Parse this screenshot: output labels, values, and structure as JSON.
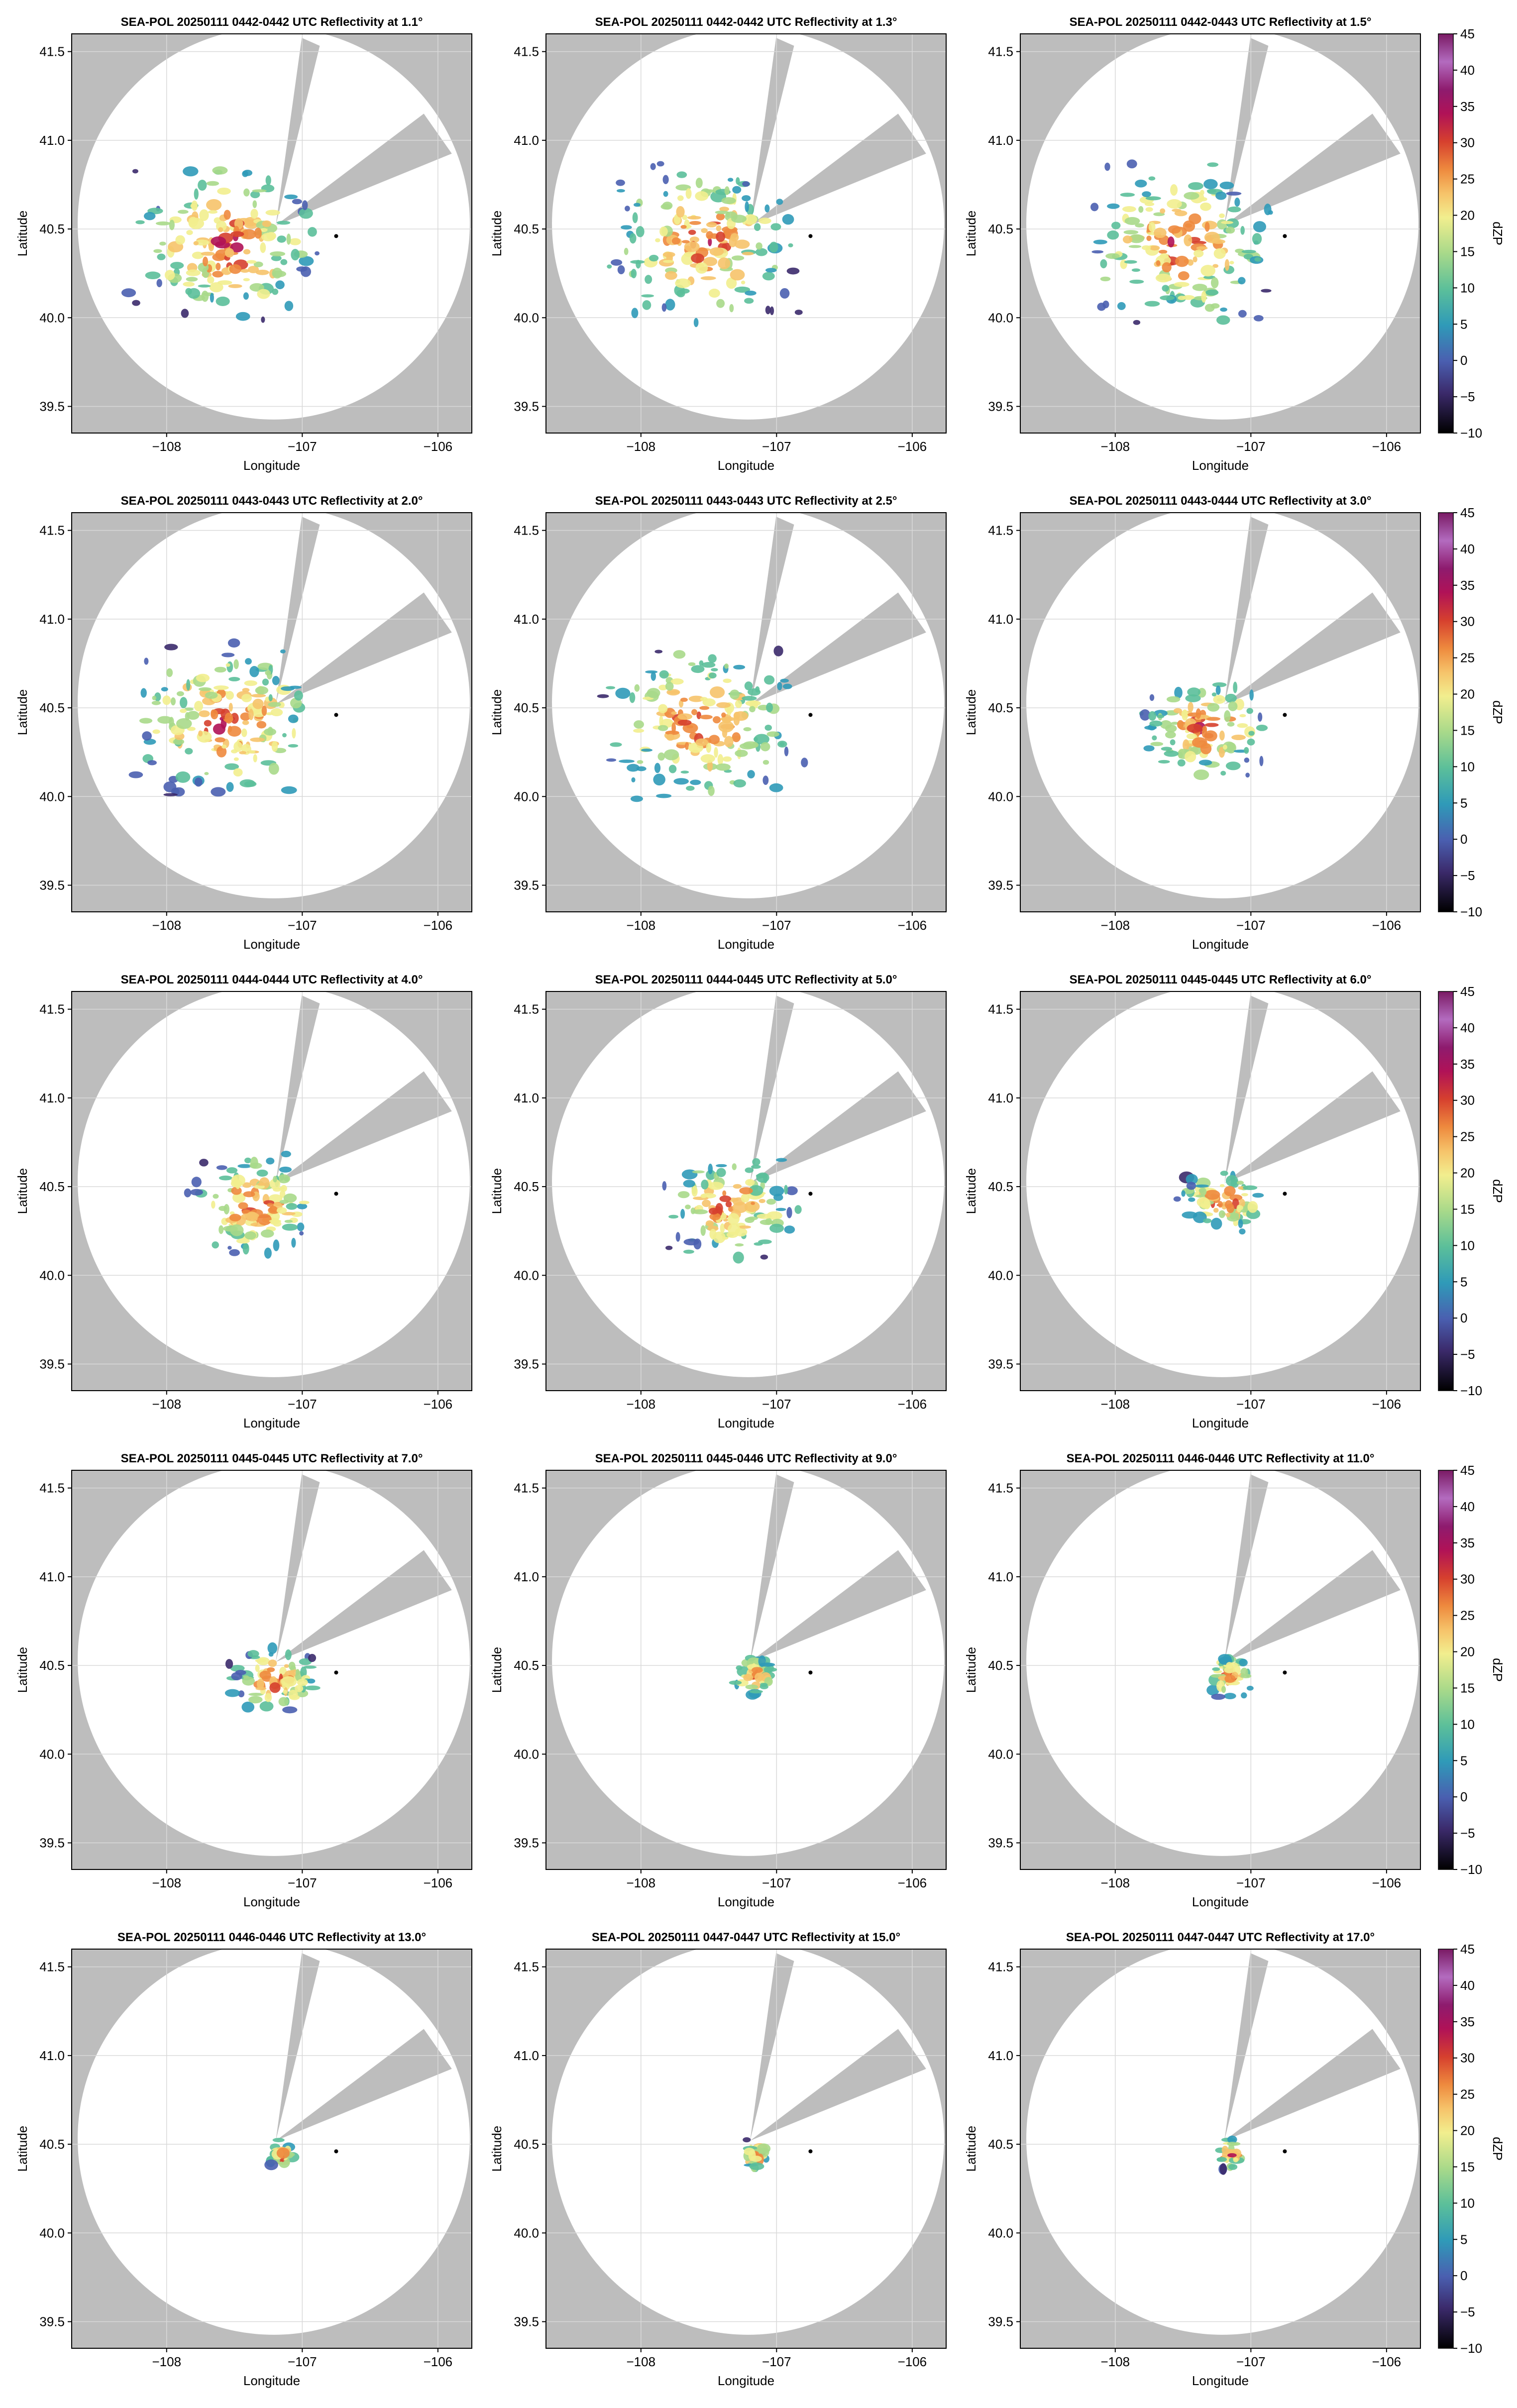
{
  "figure": {
    "colorbar_label": "dZP",
    "colorbar_ticks": [
      "45",
      "40",
      "35",
      "30",
      "25",
      "20",
      "15",
      "10",
      "5",
      "0",
      "−5",
      "−10"
    ],
    "colors": {
      "blocked_sector": "#bdbdbd",
      "grid": "#d9d9d9",
      "radar_site": "#000000",
      "colormap": [
        "#000000",
        "#3b2a6b",
        "#4a5fb0",
        "#2f9ab8",
        "#5bbf9a",
        "#a8d98a",
        "#f2ee8e",
        "#f6c36a",
        "#ee8a3e",
        "#d6402e",
        "#b01257",
        "#8e1b6e",
        "#b36bbf",
        "#7a1a64"
      ]
    }
  },
  "chart_data": [
    {
      "type": "heatmap",
      "title": "SEA-POL 20250111 0442-0442 UTC Reflectivity at 1.1°",
      "xlabel": "Longitude",
      "ylabel": "Latitude",
      "xlim": [
        -108.7,
        -105.75
      ],
      "ylim": [
        39.35,
        41.6
      ],
      "xticks": [
        "−108",
        "−107",
        "−106"
      ],
      "yticks": [
        "41.5",
        "41.0",
        "40.5",
        "40.0",
        "39.5"
      ],
      "radar_site": {
        "lon": -106.75,
        "lat": 40.46
      },
      "elevation_deg": 1.1,
      "echo_extent": "wide",
      "colorbar": false
    },
    {
      "type": "heatmap",
      "title": "SEA-POL 20250111 0442-0442 UTC Reflectivity at 1.3°",
      "xlabel": "Longitude",
      "ylabel": "Latitude",
      "xlim": [
        -108.7,
        -105.75
      ],
      "ylim": [
        39.35,
        41.6
      ],
      "xticks": [
        "−108",
        "−107",
        "−106"
      ],
      "yticks": [
        "41.5",
        "41.0",
        "40.5",
        "40.0",
        "39.5"
      ],
      "radar_site": {
        "lon": -106.75,
        "lat": 40.46
      },
      "elevation_deg": 1.3,
      "echo_extent": "wide",
      "colorbar": false
    },
    {
      "type": "heatmap",
      "title": "SEA-POL 20250111 0442-0443 UTC Reflectivity at 1.5°",
      "xlabel": "Longitude",
      "ylabel": "Latitude",
      "xlim": [
        -108.7,
        -105.75
      ],
      "ylim": [
        39.35,
        41.6
      ],
      "xticks": [
        "−108",
        "−107",
        "−106"
      ],
      "yticks": [
        "41.5",
        "41.0",
        "40.5",
        "40.0",
        "39.5"
      ],
      "radar_site": {
        "lon": -106.75,
        "lat": 40.46
      },
      "elevation_deg": 1.5,
      "echo_extent": "wide",
      "colorbar": true,
      "clim": [
        -10,
        45
      ]
    },
    {
      "type": "heatmap",
      "title": "SEA-POL 20250111 0443-0443 UTC Reflectivity at 2.0°",
      "xlabel": "Longitude",
      "ylabel": "Latitude",
      "xlim": [
        -108.7,
        -105.75
      ],
      "ylim": [
        39.35,
        41.6
      ],
      "xticks": [
        "−108",
        "−107",
        "−106"
      ],
      "yticks": [
        "41.5",
        "41.0",
        "40.5",
        "40.0",
        "39.5"
      ],
      "radar_site": {
        "lon": -106.75,
        "lat": 40.46
      },
      "elevation_deg": 2.0,
      "echo_extent": "wide",
      "colorbar": false
    },
    {
      "type": "heatmap",
      "title": "SEA-POL 20250111 0443-0443 UTC Reflectivity at 2.5°",
      "xlabel": "Longitude",
      "ylabel": "Latitude",
      "xlim": [
        -108.7,
        -105.75
      ],
      "ylim": [
        39.35,
        41.6
      ],
      "xticks": [
        "−108",
        "−107",
        "−106"
      ],
      "yticks": [
        "41.5",
        "41.0",
        "40.5",
        "40.0",
        "39.5"
      ],
      "radar_site": {
        "lon": -106.75,
        "lat": 40.46
      },
      "elevation_deg": 2.5,
      "echo_extent": "wide",
      "colorbar": false
    },
    {
      "type": "heatmap",
      "title": "SEA-POL 20250111 0443-0444 UTC Reflectivity at 3.0°",
      "xlabel": "Longitude",
      "ylabel": "Latitude",
      "xlim": [
        -108.7,
        -105.75
      ],
      "ylim": [
        39.35,
        41.6
      ],
      "xticks": [
        "−108",
        "−107",
        "−106"
      ],
      "yticks": [
        "41.5",
        "41.0",
        "40.5",
        "40.0",
        "39.5"
      ],
      "radar_site": {
        "lon": -106.75,
        "lat": 40.46
      },
      "elevation_deg": 3.0,
      "echo_extent": "medium",
      "colorbar": true,
      "clim": [
        -10,
        45
      ]
    },
    {
      "type": "heatmap",
      "title": "SEA-POL 20250111 0444-0444 UTC Reflectivity at 4.0°",
      "xlabel": "Longitude",
      "ylabel": "Latitude",
      "xlim": [
        -108.7,
        -105.75
      ],
      "ylim": [
        39.35,
        41.6
      ],
      "xticks": [
        "−108",
        "−107",
        "−106"
      ],
      "yticks": [
        "41.5",
        "41.0",
        "40.5",
        "40.0",
        "39.5"
      ],
      "radar_site": {
        "lon": -106.75,
        "lat": 40.46
      },
      "elevation_deg": 4.0,
      "echo_extent": "medium",
      "colorbar": false
    },
    {
      "type": "heatmap",
      "title": "SEA-POL 20250111 0444-0445 UTC Reflectivity at 5.0°",
      "xlabel": "Longitude",
      "ylabel": "Latitude",
      "xlim": [
        -108.7,
        -105.75
      ],
      "ylim": [
        39.35,
        41.6
      ],
      "xticks": [
        "−108",
        "−107",
        "−106"
      ],
      "yticks": [
        "41.5",
        "41.0",
        "40.5",
        "40.0",
        "39.5"
      ],
      "radar_site": {
        "lon": -106.75,
        "lat": 40.46
      },
      "elevation_deg": 5.0,
      "echo_extent": "medium",
      "colorbar": false
    },
    {
      "type": "heatmap",
      "title": "SEA-POL 20250111 0445-0445 UTC Reflectivity at 6.0°",
      "xlabel": "Longitude",
      "ylabel": "Latitude",
      "xlim": [
        -108.7,
        -105.75
      ],
      "ylim": [
        39.35,
        41.6
      ],
      "xticks": [
        "−108",
        "−107",
        "−106"
      ],
      "yticks": [
        "41.5",
        "41.0",
        "40.5",
        "40.0",
        "39.5"
      ],
      "radar_site": {
        "lon": -106.75,
        "lat": 40.46
      },
      "elevation_deg": 6.0,
      "echo_extent": "small",
      "colorbar": true,
      "clim": [
        -10,
        45
      ]
    },
    {
      "type": "heatmap",
      "title": "SEA-POL 20250111 0445-0445 UTC Reflectivity at 7.0°",
      "xlabel": "Longitude",
      "ylabel": "Latitude",
      "xlim": [
        -108.7,
        -105.75
      ],
      "ylim": [
        39.35,
        41.6
      ],
      "xticks": [
        "−108",
        "−107",
        "−106"
      ],
      "yticks": [
        "41.5",
        "41.0",
        "40.5",
        "40.0",
        "39.5"
      ],
      "radar_site": {
        "lon": -106.75,
        "lat": 40.46
      },
      "elevation_deg": 7.0,
      "echo_extent": "small",
      "colorbar": false
    },
    {
      "type": "heatmap",
      "title": "SEA-POL 20250111 0445-0446 UTC Reflectivity at 9.0°",
      "xlabel": "Longitude",
      "ylabel": "Latitude",
      "xlim": [
        -108.7,
        -105.75
      ],
      "ylim": [
        39.35,
        41.6
      ],
      "xticks": [
        "−108",
        "−107",
        "−106"
      ],
      "yticks": [
        "41.5",
        "41.0",
        "40.5",
        "40.0",
        "39.5"
      ],
      "radar_site": {
        "lon": -106.75,
        "lat": 40.46
      },
      "elevation_deg": 9.0,
      "echo_extent": "tiny",
      "colorbar": false
    },
    {
      "type": "heatmap",
      "title": "SEA-POL 20250111 0446-0446 UTC Reflectivity at 11.0°",
      "xlabel": "Longitude",
      "ylabel": "Latitude",
      "xlim": [
        -108.7,
        -105.75
      ],
      "ylim": [
        39.35,
        41.6
      ],
      "xticks": [
        "−108",
        "−107",
        "−106"
      ],
      "yticks": [
        "41.5",
        "41.0",
        "40.5",
        "40.0",
        "39.5"
      ],
      "radar_site": {
        "lon": -106.75,
        "lat": 40.46
      },
      "elevation_deg": 11.0,
      "echo_extent": "tiny",
      "colorbar": true,
      "clim": [
        -10,
        45
      ]
    },
    {
      "type": "heatmap",
      "title": "SEA-POL 20250111 0446-0446 UTC Reflectivity at 13.0°",
      "xlabel": "Longitude",
      "ylabel": "Latitude",
      "xlim": [
        -108.7,
        -105.75
      ],
      "ylim": [
        39.35,
        41.6
      ],
      "xticks": [
        "−108",
        "−107",
        "−106"
      ],
      "yticks": [
        "41.5",
        "41.0",
        "40.5",
        "40.0",
        "39.5"
      ],
      "radar_site": {
        "lon": -106.75,
        "lat": 40.46
      },
      "elevation_deg": 13.0,
      "echo_extent": "minimal",
      "colorbar": false
    },
    {
      "type": "heatmap",
      "title": "SEA-POL 20250111 0447-0447 UTC Reflectivity at 15.0°",
      "xlabel": "Longitude",
      "ylabel": "Latitude",
      "xlim": [
        -108.7,
        -105.75
      ],
      "ylim": [
        39.35,
        41.6
      ],
      "xticks": [
        "−108",
        "−107",
        "−106"
      ],
      "yticks": [
        "41.5",
        "41.0",
        "40.5",
        "40.0",
        "39.5"
      ],
      "radar_site": {
        "lon": -106.75,
        "lat": 40.46
      },
      "elevation_deg": 15.0,
      "echo_extent": "minimal",
      "colorbar": false
    },
    {
      "type": "heatmap",
      "title": "SEA-POL 20250111 0447-0447 UTC Reflectivity at 17.0°",
      "xlabel": "Longitude",
      "ylabel": "Latitude",
      "xlim": [
        -108.7,
        -105.75
      ],
      "ylim": [
        39.35,
        41.6
      ],
      "xticks": [
        "−108",
        "−107",
        "−106"
      ],
      "yticks": [
        "41.5",
        "41.0",
        "40.5",
        "40.0",
        "39.5"
      ],
      "radar_site": {
        "lon": -106.75,
        "lat": 40.46
      },
      "elevation_deg": 17.0,
      "echo_extent": "minimal",
      "colorbar": true,
      "clim": [
        -10,
        45
      ]
    }
  ]
}
